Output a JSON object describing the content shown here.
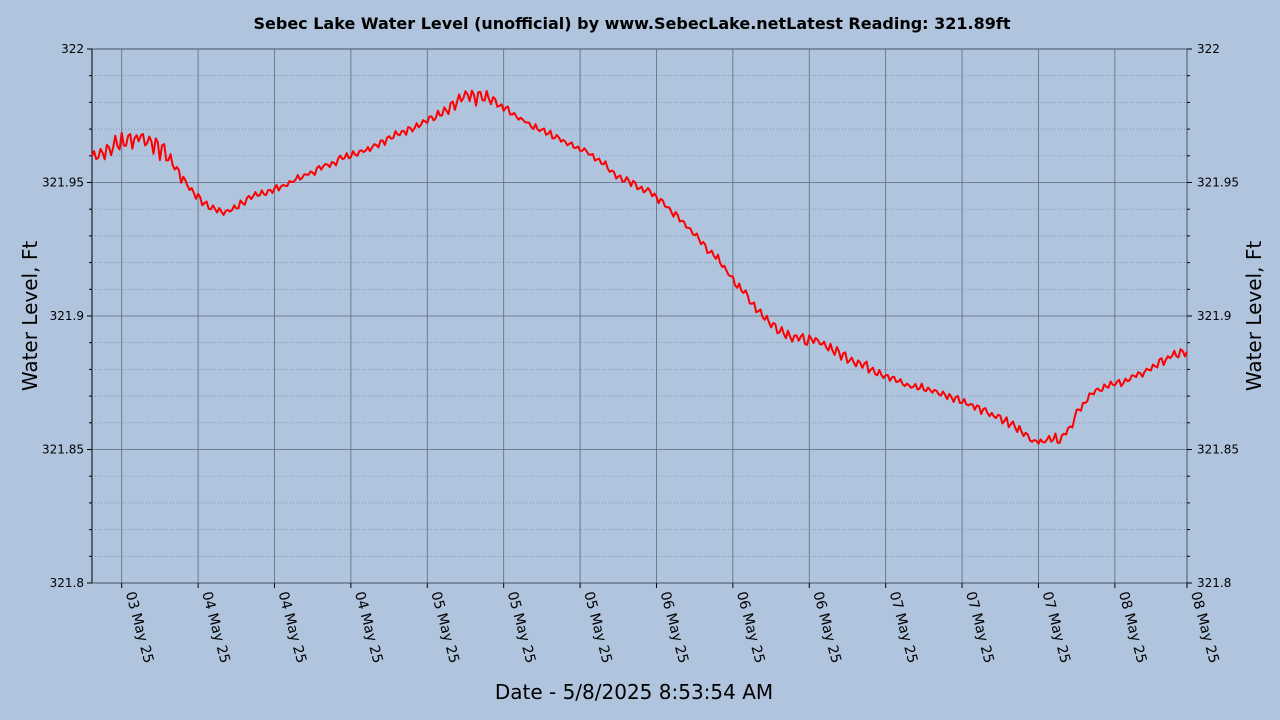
{
  "chart_data": {
    "type": "line",
    "title": "Sebec Lake Water Level (unofficial) by www.SebecLake.netLatest Reading: 321.89ft",
    "xlabel": "Date - 5/8/2025 8:53:54 AM",
    "ylabel": "Water Level, Ft",
    "ylabel_right": "Water Level, Ft",
    "ylim": [
      321.8,
      322.0
    ],
    "y_ticks": [
      "321.8",
      "321.85",
      "321.9",
      "321.95",
      "322"
    ],
    "y_tick_values": [
      321.8,
      321.85,
      321.9,
      321.95,
      322.0
    ],
    "x_range_hours": [
      0,
      129
    ],
    "x_ticks": [
      {
        "hour": 3.5,
        "label": "03 May 25"
      },
      {
        "hour": 12.5,
        "label": "04 May 25"
      },
      {
        "hour": 21.5,
        "label": "04 May 25"
      },
      {
        "hour": 30.5,
        "label": "04 May 25"
      },
      {
        "hour": 39.5,
        "label": "05 May 25"
      },
      {
        "hour": 48.5,
        "label": "05 May 25"
      },
      {
        "hour": 57.5,
        "label": "05 May 25"
      },
      {
        "hour": 66.5,
        "label": "06 May 25"
      },
      {
        "hour": 75.5,
        "label": "06 May 25"
      },
      {
        "hour": 84.5,
        "label": "06 May 25"
      },
      {
        "hour": 93.5,
        "label": "07 May 25"
      },
      {
        "hour": 102.5,
        "label": "07 May 25"
      },
      {
        "hour": 111.5,
        "label": "07 May 25"
      },
      {
        "hour": 120.5,
        "label": "08 May 25"
      },
      {
        "hour": 129.0,
        "label": "08 May 25"
      }
    ],
    "grid": true,
    "series": [
      {
        "name": "Water Level",
        "color": "#ff0000",
        "x_hours": [
          0,
          2,
          3,
          4,
          5,
          6,
          7,
          8,
          9,
          10,
          11,
          12,
          13,
          14,
          15,
          16,
          17,
          18,
          20,
          22,
          24,
          26,
          28,
          30,
          32,
          34,
          36,
          38,
          40,
          42,
          43,
          44,
          45,
          46,
          47,
          48,
          50,
          52,
          54,
          56,
          58,
          60,
          62,
          64,
          66,
          68,
          70,
          72,
          74,
          76,
          78,
          80,
          82,
          84,
          86,
          88,
          90,
          92,
          94,
          96,
          98,
          100,
          102,
          104,
          106,
          108,
          110,
          111,
          112,
          113,
          114,
          115,
          116,
          118,
          120,
          122,
          124,
          126,
          128,
          129
        ],
        "values": [
          321.96,
          321.962,
          321.965,
          321.966,
          321.967,
          321.966,
          321.965,
          321.963,
          321.96,
          321.955,
          321.95,
          321.946,
          321.943,
          321.941,
          321.939,
          321.939,
          321.941,
          321.943,
          321.946,
          321.948,
          321.951,
          321.954,
          321.957,
          321.96,
          321.962,
          321.965,
          321.968,
          321.971,
          321.974,
          321.977,
          321.98,
          321.982,
          321.982,
          321.982,
          321.981,
          321.979,
          321.975,
          321.971,
          321.968,
          321.965,
          321.962,
          321.958,
          321.952,
          321.949,
          321.946,
          321.94,
          321.934,
          321.927,
          321.92,
          321.912,
          321.904,
          321.897,
          321.893,
          321.891,
          321.89,
          321.886,
          321.883,
          321.88,
          321.877,
          321.874,
          321.873,
          321.871,
          321.869,
          321.866,
          321.863,
          321.86,
          321.856,
          321.853,
          321.853,
          321.854,
          321.854,
          321.857,
          321.864,
          321.872,
          321.874,
          321.876,
          321.879,
          321.883,
          321.886,
          321.886
        ],
        "noise_amplitude": [
          0.002,
          0.003,
          0.004,
          0.005,
          0.006,
          0.006,
          0.006,
          0.005,
          0.004,
          0.003,
          0.002,
          0.002,
          0.0015,
          0.0015,
          0.0015,
          0.0015,
          0.0015,
          0.0015,
          0.0015,
          0.0015,
          0.0015,
          0.0015,
          0.0015,
          0.0015,
          0.0015,
          0.0015,
          0.0015,
          0.0015,
          0.0015,
          0.002,
          0.003,
          0.003,
          0.003,
          0.003,
          0.003,
          0.002,
          0.0015,
          0.0015,
          0.0015,
          0.0015,
          0.0015,
          0.0015,
          0.0015,
          0.0015,
          0.0015,
          0.0015,
          0.0015,
          0.0015,
          0.002,
          0.002,
          0.002,
          0.002,
          0.002,
          0.002,
          0.002,
          0.002,
          0.002,
          0.002,
          0.0015,
          0.0015,
          0.0015,
          0.0015,
          0.0015,
          0.0015,
          0.0015,
          0.002,
          0.002,
          0.002,
          0.002,
          0.002,
          0.002,
          0.002,
          0.002,
          0.0015,
          0.0015,
          0.0015,
          0.0015,
          0.0015,
          0.002,
          0.003
        ]
      }
    ]
  }
}
